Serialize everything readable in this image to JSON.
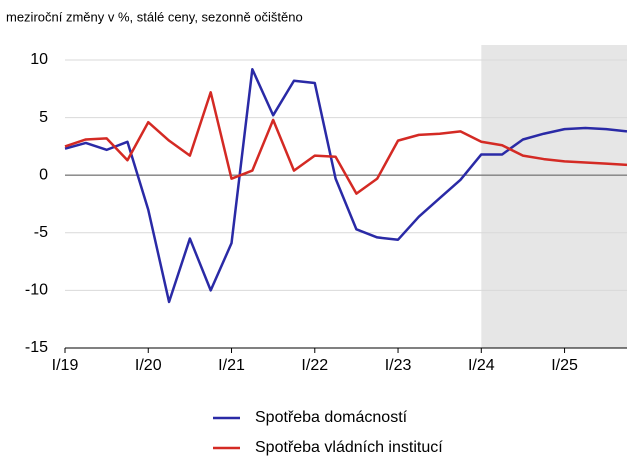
{
  "chart_data": {
    "type": "line",
    "subtitle": "meziroční změny v %, stálé ceny, sezonně očištěno",
    "categories": [
      "I/19",
      null,
      null,
      null,
      "I/20",
      null,
      null,
      null,
      "I/21",
      null,
      null,
      null,
      "I/22",
      null,
      null,
      null,
      "I/23",
      null,
      null,
      null,
      "I/24",
      null,
      null,
      null,
      "I/25",
      null,
      null,
      null
    ],
    "series": [
      {
        "name": "Spotřeba domácností",
        "color": "#2a2aa6",
        "values": [
          2.3,
          2.8,
          2.2,
          2.9,
          -3,
          -11,
          -5.5,
          -10,
          -5.9,
          9.2,
          5.2,
          8.2,
          8.0,
          -0.3,
          -4.7,
          -5.4,
          -5.6,
          -3.6,
          -2.0,
          -0.4,
          1.8,
          1.8,
          3.1,
          3.6,
          4.0,
          4.1,
          4.0,
          3.8
        ]
      },
      {
        "name": "Spotřeba vládních institucí",
        "color": "#d42a24",
        "values": [
          2.5,
          3.1,
          3.2,
          1.3,
          4.6,
          3.0,
          1.7,
          7.2,
          -0.3,
          0.4,
          4.8,
          0.4,
          1.7,
          1.6,
          -1.6,
          -0.3,
          3.0,
          3.5,
          3.6,
          3.8,
          2.9,
          2.6,
          1.7,
          1.4,
          1.2,
          1.1,
          1.0,
          0.9
        ]
      }
    ],
    "ylim": [
      -15,
      10
    ],
    "yticks": [
      -15,
      -10,
      -5,
      0,
      5,
      10
    ],
    "grid": true,
    "shaded_from": "I/24",
    "legend": "bottom"
  }
}
